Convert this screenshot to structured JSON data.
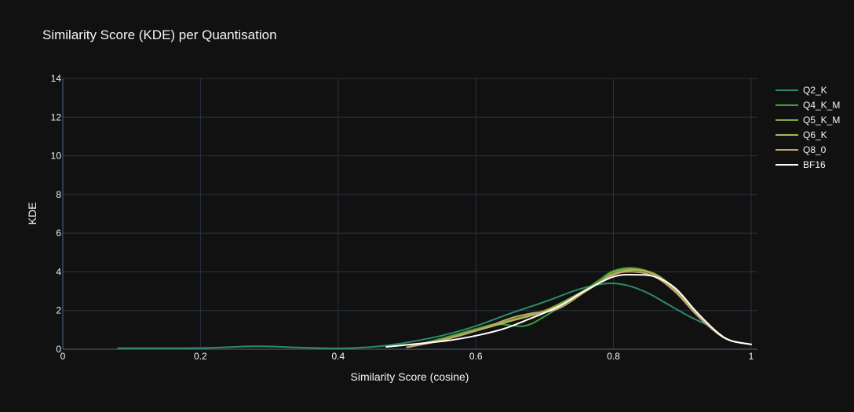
{
  "chart_data": {
    "type": "line",
    "title": "Similarity Score (KDE) per Quantisation",
    "xlabel": "Similarity Score (cosine)",
    "ylabel": "KDE",
    "xlim": [
      0,
      1
    ],
    "ylim": [
      0,
      14
    ],
    "xticks": [
      0,
      0.2,
      0.4,
      0.6,
      0.8,
      1
    ],
    "xtick_labels": [
      "0",
      "0.2",
      "0.4",
      "0.6",
      "0.8",
      "1"
    ],
    "yticks": [
      0,
      2,
      4,
      6,
      8,
      10,
      12,
      14
    ],
    "ytick_labels": [
      "0",
      "2",
      "4",
      "6",
      "8",
      "10",
      "12",
      "14"
    ],
    "grid": true,
    "legend_position": "right",
    "background": "#111111",
    "series": [
      {
        "name": "Q2_K",
        "color": "#2e8b6a",
        "x": [
          0.08,
          0.2,
          0.28,
          0.35,
          0.41,
          0.46,
          0.5,
          0.55,
          0.6,
          0.65,
          0.7,
          0.75,
          0.79,
          0.82,
          0.85,
          0.88,
          0.91,
          0.94
        ],
        "y": [
          0.05,
          0.06,
          0.15,
          0.08,
          0.05,
          0.15,
          0.35,
          0.7,
          1.2,
          1.85,
          2.45,
          3.1,
          3.4,
          3.3,
          2.9,
          2.3,
          1.7,
          1.2
        ]
      },
      {
        "name": "Q4_K_M",
        "color": "#3f9a3c",
        "x": [
          0.5,
          0.55,
          0.6,
          0.63,
          0.67,
          0.7,
          0.74,
          0.78,
          0.8,
          0.83,
          0.86,
          0.89,
          0.92,
          0.95,
          0.97,
          1.0
        ],
        "y": [
          0.1,
          0.55,
          1.05,
          1.3,
          1.2,
          1.7,
          2.6,
          3.6,
          4.05,
          4.2,
          3.85,
          3.0,
          1.8,
          0.85,
          0.45,
          0.25
        ]
      },
      {
        "name": "Q5_K_M",
        "color": "#7eaa3c",
        "x": [
          0.5,
          0.55,
          0.6,
          0.65,
          0.7,
          0.74,
          0.78,
          0.8,
          0.83,
          0.86,
          0.89,
          0.92,
          0.95,
          0.97,
          1.0
        ],
        "y": [
          0.1,
          0.5,
          1.0,
          1.5,
          2.0,
          2.7,
          3.5,
          4.0,
          4.15,
          3.9,
          3.1,
          1.9,
          0.9,
          0.45,
          0.25
        ]
      },
      {
        "name": "Q6_K",
        "color": "#b3b45a",
        "x": [
          0.5,
          0.55,
          0.6,
          0.65,
          0.7,
          0.74,
          0.78,
          0.8,
          0.83,
          0.86,
          0.89,
          0.92,
          0.95,
          0.97,
          1.0
        ],
        "y": [
          0.1,
          0.45,
          0.95,
          1.45,
          1.95,
          2.6,
          3.45,
          3.9,
          4.1,
          3.85,
          3.05,
          1.85,
          0.85,
          0.45,
          0.25
        ]
      },
      {
        "name": "Q8_0",
        "color": "#c2a46a",
        "x": [
          0.5,
          0.55,
          0.6,
          0.65,
          0.68,
          0.72,
          0.76,
          0.8,
          0.83,
          0.86,
          0.89,
          0.92,
          0.95,
          0.97,
          1.0
        ],
        "y": [
          0.1,
          0.45,
          0.95,
          1.6,
          1.85,
          2.1,
          3.0,
          3.85,
          4.0,
          3.75,
          2.95,
          1.8,
          0.85,
          0.45,
          0.25
        ]
      },
      {
        "name": "BF16",
        "color": "#ffffff",
        "x": [
          0.47,
          0.52,
          0.56,
          0.6,
          0.64,
          0.68,
          0.72,
          0.76,
          0.8,
          0.83,
          0.86,
          0.89,
          0.92,
          0.95,
          0.97,
          1.0
        ],
        "y": [
          0.12,
          0.3,
          0.45,
          0.7,
          1.05,
          1.6,
          2.2,
          3.05,
          3.75,
          3.85,
          3.75,
          3.15,
          1.95,
          0.9,
          0.45,
          0.25
        ]
      }
    ]
  }
}
